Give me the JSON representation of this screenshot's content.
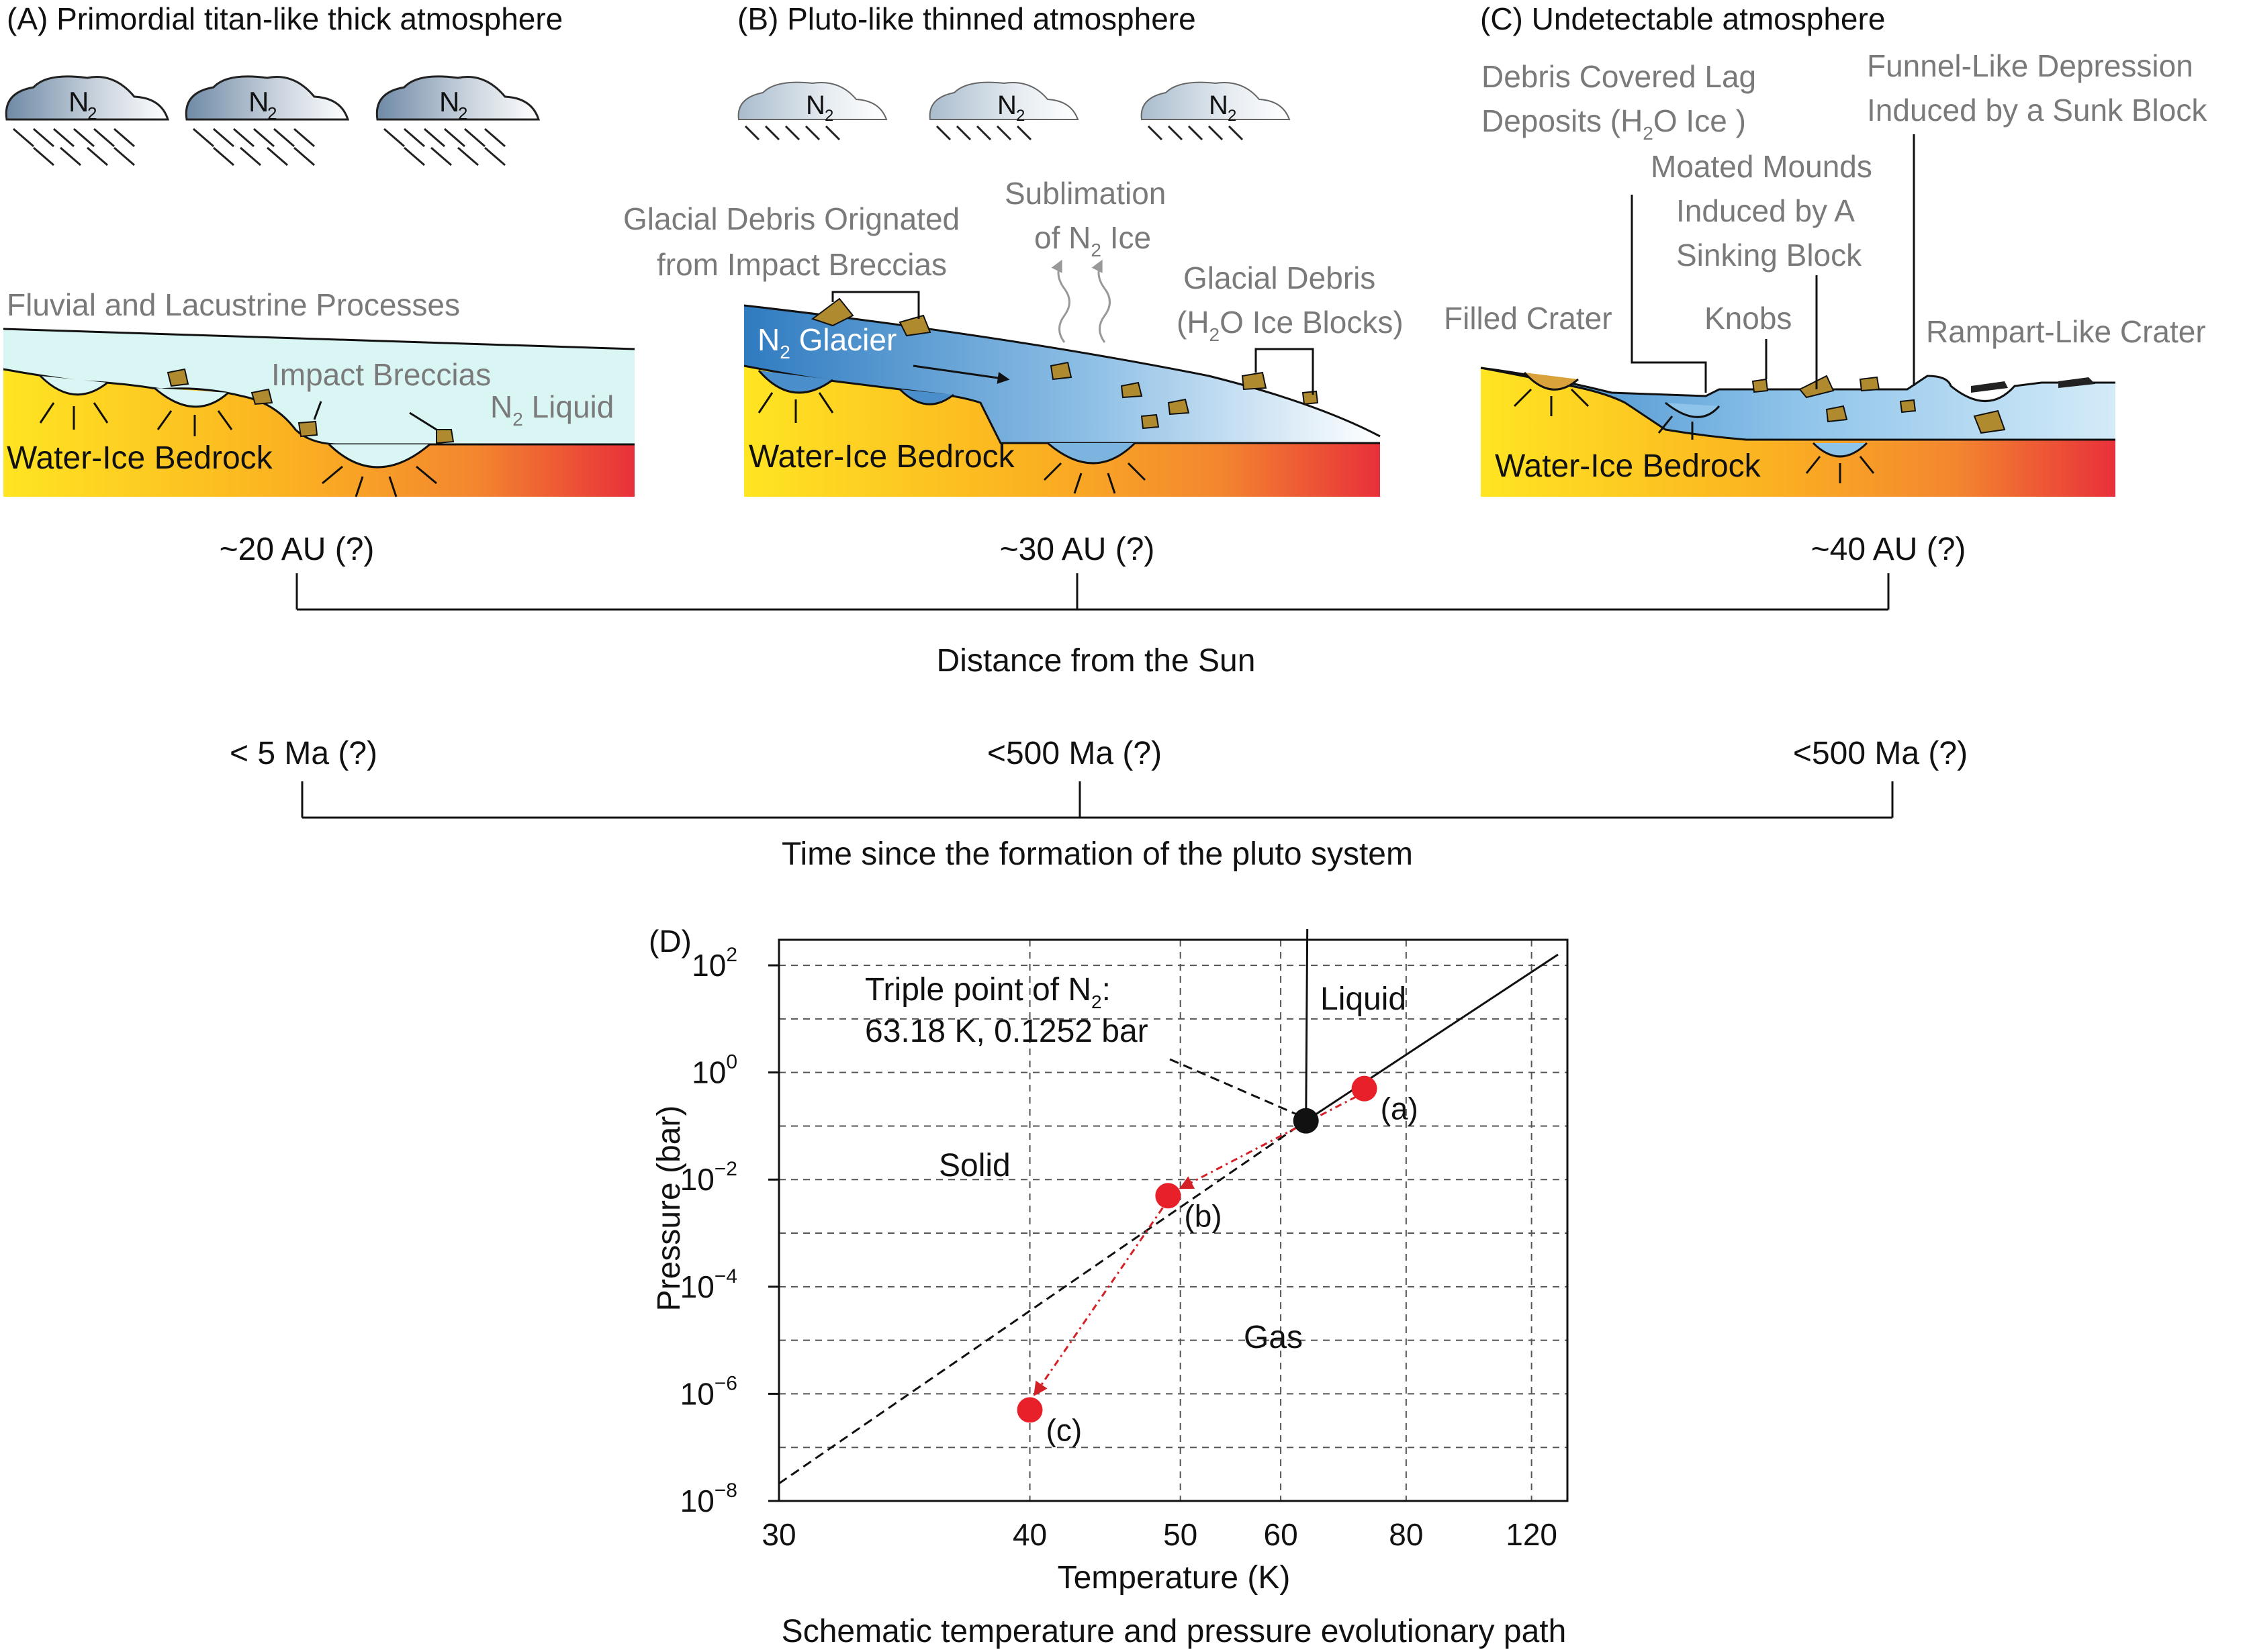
{
  "panel_a": {
    "title": "(A) Primordial titan-like thick atmosphere",
    "cloud_label": "N",
    "cloud_sub": "2",
    "label_fluvial": "Fluvial and Lacustrine Processes",
    "label_breccias": "Impact Breccias",
    "label_liquid": "N",
    "label_liquid_sub": "2",
    "label_liquid_rest": " Liquid",
    "label_bedrock": "Water-Ice Bedrock"
  },
  "panel_b": {
    "title": "(B) Pluto-like thinned atmosphere",
    "cloud_label": "N",
    "cloud_sub": "2",
    "label_debris_1": "Glacial Debris Orignated",
    "label_debris_2": "from Impact Breccias",
    "label_sublimation_1": "Sublimation",
    "label_sublimation_2a": "of N",
    "label_sublimation_2sub": "2",
    "label_sublimation_2b": " Ice",
    "label_glacial_1": "Glacial Debris",
    "label_glacial_2a": "(H",
    "label_glacial_2sub": "2",
    "label_glacial_2b": "O Ice Blocks)",
    "label_glacier_a": "N",
    "label_glacier_sub": "2",
    "label_glacier_b": " Glacier",
    "label_bedrock": "Water-Ice Bedrock"
  },
  "panel_c": {
    "title": "(C) Undetectable atmosphere",
    "label_lag_1": "Debris Covered Lag",
    "label_lag_2a": "Deposits  (H",
    "label_lag_2sub": "2",
    "label_lag_2b": "O Ice )",
    "label_funnel_1": "Funnel-Like Depression",
    "label_funnel_2": "Induced by a Sunk Block",
    "label_moated_1": "Moated Mounds",
    "label_moated_2": "Induced by A",
    "label_moated_3": "Sinking Block",
    "label_filled": "Filled Crater",
    "label_knobs": "Knobs",
    "label_rampart": "Rampart-Like Crater",
    "label_bedrock": "Water-Ice Bedrock"
  },
  "distance_axis": {
    "ticks": [
      "~20 AU (?)",
      "~30 AU (?)",
      "~40 AU (?)"
    ],
    "label": "Distance from the Sun"
  },
  "time_axis": {
    "ticks": [
      "< 5  Ma (?)",
      "<500  Ma (?)",
      "<500  Ma (?)"
    ],
    "label": "Time since the formation of the pluto system"
  },
  "phase_diagram": {
    "panel_label": "(D)",
    "triple_point_label_1a": "Triple point of N",
    "triple_point_label_1sub": "2",
    "triple_point_label_1b": ":",
    "triple_point_label_2": "63.18 K, 0.1252 bar",
    "region_liquid": "Liquid",
    "region_solid": "Solid",
    "region_gas": "Gas",
    "xlabel": "Temperature (K)",
    "ylabel": "Pressure (bar)",
    "caption": "Schematic temperature and pressure evolutionary path"
  },
  "chart_data": {
    "type": "scatter",
    "x_scale": "reciprocal",
    "y_scale": "log",
    "x_ticks": [
      30,
      40,
      50,
      60,
      80,
      120
    ],
    "y_tick_exponents": [
      2,
      0,
      -2,
      -4,
      -6,
      -8
    ],
    "xlim": [
      30,
      140
    ],
    "ylim": [
      1e-08,
      300
    ],
    "grid": true,
    "points": [
      {
        "label": "(a)",
        "x": 72,
        "y": 0.5,
        "color": "#e8202a"
      },
      {
        "label": "(b)",
        "x": 49,
        "y": 0.005,
        "color": "#e8202a"
      },
      {
        "label": "(c)",
        "x": 40,
        "y": 5e-07,
        "color": "#e8202a"
      },
      {
        "label": "",
        "x": 63.18,
        "y": 0.1252,
        "color": "#111111"
      }
    ],
    "path_color": "#d42027"
  },
  "colors": {
    "bedrock_start": "#ffe21f",
    "bedrock_end": "#e8303a",
    "glacier": "#3b84c6",
    "liquid": "#d9f6f4",
    "debris": "#b08a2e",
    "label_gray": "#7a7a7a"
  }
}
